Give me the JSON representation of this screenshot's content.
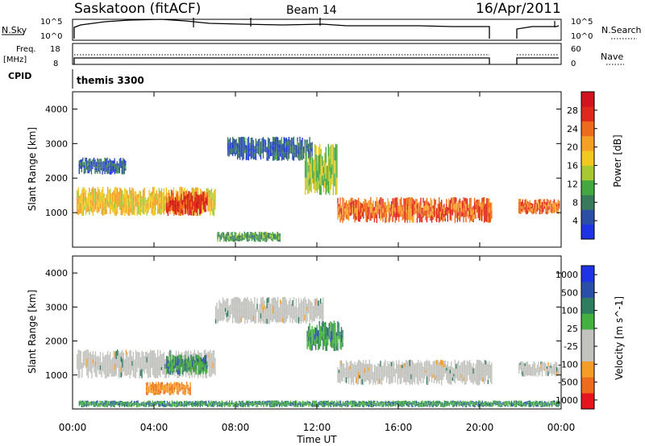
{
  "header": {
    "title": "Saskatoon (fitACF)",
    "beam": "Beam 14",
    "date": "16/Apr/2011"
  },
  "summary": {
    "nsky_label": "N.Sky",
    "nsky_ticks": [
      "10^5",
      "10^0"
    ],
    "nsearch_label": "N.Search",
    "nsearch_ticks": [
      "10^5",
      "10^0"
    ],
    "freq_label": "Freq.",
    "freq_unit": "[MHz]",
    "freq_ticks": [
      "18",
      "8"
    ],
    "nave_label": "Nave",
    "nave_ticks": [
      "60",
      "0"
    ],
    "cpid_label": "CPID",
    "cpid_value": "themis 3300"
  },
  "colors": {
    "power": [
      "#1f33e6",
      "#2b4fa6",
      "#3a7a5c",
      "#44a840",
      "#a8c832",
      "#f0c81e",
      "#f4a024",
      "#ee6a1c",
      "#e0281c",
      "#d2141e"
    ],
    "velocity": [
      "#e6141e",
      "#ee6a1c",
      "#f49c26",
      "#c2c2be",
      "#c2c2be",
      "#44b040",
      "#2f7d60",
      "#2a4fa8",
      "#1f33e6"
    ]
  },
  "chart_data": [
    {
      "type": "heatmap",
      "name": "power",
      "ylabel": "Slant Range [km]",
      "yticks": [
        "1000",
        "2000",
        "3000",
        "4000"
      ],
      "ylim": [
        0,
        4500
      ],
      "xlim": [
        0,
        24
      ],
      "colorbar_label": "Power [dB]",
      "colorbar_ticks": [
        "4",
        "8",
        "12",
        "16",
        "20",
        "24",
        "28"
      ],
      "colorbar_range": [
        0,
        32
      ],
      "bands": [
        {
          "t0": 0.2,
          "t1": 7.0,
          "r0": 900,
          "r1": 1750,
          "level": 18
        },
        {
          "t0": 4.6,
          "t1": 6.6,
          "r0": 900,
          "r1": 1650,
          "level": 27
        },
        {
          "t0": 7.6,
          "t1": 11.8,
          "r0": 2500,
          "r1": 3200,
          "level": 6
        },
        {
          "t0": 11.4,
          "t1": 13.0,
          "r0": 1500,
          "r1": 3000,
          "level": 14
        },
        {
          "t0": 13.0,
          "t1": 20.6,
          "r0": 700,
          "r1": 1450,
          "level": 24
        },
        {
          "t0": 21.9,
          "t1": 23.9,
          "r0": 950,
          "r1": 1400,
          "level": 24
        },
        {
          "t0": 0.3,
          "t1": 2.6,
          "r0": 2100,
          "r1": 2600,
          "level": 6
        },
        {
          "t0": 7.1,
          "t1": 10.2,
          "r0": 150,
          "r1": 450,
          "level": 10
        }
      ]
    },
    {
      "type": "heatmap",
      "name": "velocity",
      "ylabel": "Slant Range [km]",
      "yticks": [
        "1000",
        "2000",
        "3000",
        "4000"
      ],
      "ylim": [
        0,
        4500
      ],
      "xlim": [
        0,
        24
      ],
      "colorbar_label": "Velocity [m s^-1]",
      "colorbar_ticks": [
        "1000",
        "500",
        "100",
        "25",
        "-25",
        "-100",
        "-500",
        "-1000"
      ],
      "bands": [
        {
          "t0": 0.2,
          "t1": 7.0,
          "r0": 900,
          "r1": 1750,
          "level": 0
        },
        {
          "t0": 4.6,
          "t1": 6.6,
          "r0": 1000,
          "r1": 1600,
          "level": 200
        },
        {
          "t0": 3.6,
          "t1": 5.8,
          "r0": 400,
          "r1": 800,
          "level": -300
        },
        {
          "t0": 7.0,
          "t1": 12.3,
          "r0": 2500,
          "r1": 3300,
          "level": 0
        },
        {
          "t0": 11.5,
          "t1": 13.3,
          "r0": 1700,
          "r1": 2600,
          "level": 150
        },
        {
          "t0": 13.0,
          "t1": 20.6,
          "r0": 700,
          "r1": 1450,
          "level": 0
        },
        {
          "t0": 21.9,
          "t1": 23.9,
          "r0": 950,
          "r1": 1400,
          "level": 0
        },
        {
          "t0": 0.3,
          "t1": 23.9,
          "r0": 50,
          "r1": 250,
          "level": 150
        }
      ]
    }
  ],
  "xaxis": {
    "label": "Time UT",
    "ticks": [
      "00:00",
      "04:00",
      "08:00",
      "12:00",
      "16:00",
      "20:00",
      "00:00"
    ]
  }
}
